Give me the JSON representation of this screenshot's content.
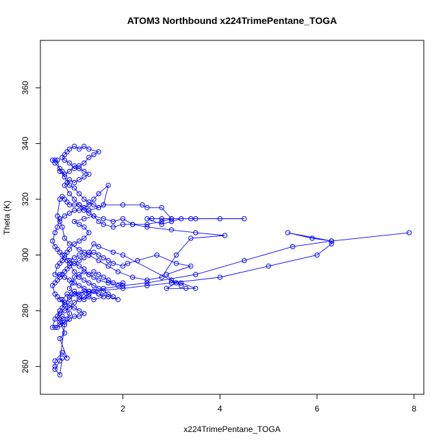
{
  "chart_data": {
    "type": "scatter",
    "title": "ATOM3 Northbound x224TrimePentane_TOGA",
    "xlabel": "x224TrimePentane_TOGA",
    "ylabel": "Theta (K)",
    "xlim": [
      0.3,
      8.2
    ],
    "ylim": [
      250,
      377
    ],
    "x_ticks": [
      2,
      4,
      6,
      8
    ],
    "y_ticks": [
      260,
      280,
      300,
      320,
      340,
      360
    ],
    "grid": false,
    "legend": "none",
    "point_style": "open-circle",
    "connect_points": true,
    "series": [
      {
        "color": "#0000ff",
        "points": [
          [
            0.6,
            260
          ],
          [
            0.6,
            262
          ],
          [
            0.75,
            265
          ],
          [
            0.85,
            263
          ],
          [
            0.7,
            270
          ],
          [
            0.8,
            272
          ],
          [
            0.7,
            276
          ],
          [
            0.75,
            278
          ],
          [
            0.85,
            277
          ],
          [
            0.9,
            279
          ],
          [
            0.8,
            282
          ],
          [
            0.75,
            284
          ],
          [
            0.85,
            286
          ],
          [
            0.9,
            285
          ],
          [
            0.95,
            286
          ],
          [
            1.0,
            287
          ],
          [
            1.1,
            286
          ],
          [
            1.2,
            287
          ],
          [
            1.3,
            286
          ],
          [
            1.4,
            287
          ],
          [
            1.5,
            286
          ],
          [
            1.6,
            285
          ],
          [
            1.4,
            284
          ],
          [
            1.3,
            285
          ],
          [
            1.2,
            284
          ],
          [
            1.1,
            285
          ],
          [
            1.0,
            286
          ],
          [
            0.9,
            288
          ],
          [
            0.95,
            290
          ],
          [
            1.0,
            292
          ],
          [
            1.1,
            293
          ],
          [
            1.2,
            294
          ],
          [
            1.3,
            293
          ],
          [
            1.4,
            294
          ],
          [
            1.5,
            293
          ],
          [
            1.6,
            292
          ],
          [
            1.7,
            291
          ],
          [
            1.8,
            290
          ],
          [
            2.0,
            290
          ],
          [
            1.9,
            289
          ],
          [
            1.7,
            290
          ],
          [
            1.5,
            291
          ],
          [
            1.4,
            292
          ],
          [
            1.3,
            293
          ],
          [
            1.2,
            295
          ],
          [
            1.1,
            296
          ],
          [
            1.0,
            297
          ],
          [
            0.9,
            298
          ],
          [
            1.0,
            299
          ],
          [
            1.1,
            300
          ],
          [
            1.2,
            301
          ],
          [
            1.3,
            300
          ],
          [
            1.4,
            301
          ],
          [
            1.5,
            300
          ],
          [
            1.6,
            299
          ],
          [
            1.7,
            298
          ],
          [
            1.8,
            297
          ],
          [
            2.0,
            296
          ],
          [
            2.1,
            297
          ],
          [
            2.3,
            298
          ],
          [
            2.7,
            300
          ],
          [
            3.1,
            297
          ],
          [
            3.4,
            296
          ],
          [
            2.9,
            293
          ],
          [
            3.0,
            291
          ],
          [
            3.2,
            290
          ],
          [
            3.5,
            288
          ],
          [
            3.3,
            288
          ],
          [
            2.9,
            288
          ],
          [
            3.1,
            290
          ],
          [
            3.2,
            289
          ],
          [
            2.0,
            300
          ],
          [
            1.8,
            301
          ],
          [
            1.5,
            303
          ],
          [
            1.4,
            304
          ],
          [
            1.3,
            301
          ],
          [
            1.2,
            299
          ],
          [
            1.1,
            298
          ],
          [
            1.0,
            297
          ],
          [
            0.9,
            296
          ],
          [
            0.85,
            295
          ],
          [
            0.8,
            294
          ],
          [
            0.7,
            293
          ],
          [
            0.6,
            293
          ],
          [
            0.65,
            296
          ],
          [
            0.7,
            297
          ],
          [
            0.75,
            298
          ],
          [
            0.8,
            300
          ],
          [
            0.85,
            301
          ],
          [
            0.9,
            302
          ],
          [
            1.0,
            304
          ],
          [
            1.1,
            305
          ],
          [
            1.2,
            306
          ],
          [
            1.3,
            308
          ],
          [
            1.2,
            310
          ],
          [
            1.1,
            311
          ],
          [
            1.0,
            312
          ],
          [
            1.2,
            313
          ],
          [
            1.4,
            314
          ],
          [
            1.6,
            313
          ],
          [
            1.8,
            312
          ],
          [
            2.0,
            313
          ],
          [
            2.2,
            311
          ],
          [
            2.5,
            311
          ],
          [
            2.8,
            312
          ],
          [
            3.0,
            313
          ],
          [
            3.4,
            313
          ],
          [
            4.5,
            313
          ],
          [
            4.0,
            313
          ],
          [
            3.5,
            313
          ],
          [
            3.2,
            313
          ],
          [
            3.0,
            312
          ],
          [
            2.8,
            311
          ],
          [
            2.5,
            313
          ],
          [
            2.6,
            313
          ],
          [
            2.8,
            313
          ],
          [
            3.0,
            313
          ],
          [
            2.8,
            317
          ],
          [
            2.5,
            317
          ],
          [
            2.4,
            318
          ],
          [
            2.0,
            318
          ],
          [
            1.6,
            318
          ],
          [
            1.5,
            317
          ],
          [
            1.3,
            316
          ],
          [
            1.2,
            317
          ],
          [
            1.1,
            318
          ],
          [
            1.0,
            318
          ],
          [
            0.9,
            318
          ],
          [
            0.85,
            319
          ],
          [
            0.8,
            320
          ],
          [
            0.75,
            321
          ],
          [
            0.7,
            320
          ],
          [
            0.65,
            314
          ],
          [
            0.7,
            312
          ],
          [
            0.75,
            310
          ],
          [
            0.8,
            306
          ],
          [
            0.9,
            304
          ],
          [
            1.1,
            302
          ],
          [
            1.3,
            300
          ],
          [
            1.5,
            298
          ],
          [
            1.7,
            296
          ],
          [
            1.9,
            294
          ],
          [
            2.2,
            292
          ],
          [
            2.5,
            291
          ],
          [
            2.8,
            292
          ],
          [
            3.1,
            300
          ],
          [
            3.4,
            306
          ],
          [
            4.1,
            307
          ],
          [
            3.5,
            308
          ],
          [
            3.0,
            309
          ],
          [
            2.5,
            310
          ],
          [
            2.2,
            311
          ],
          [
            2.0,
            311
          ],
          [
            1.8,
            310
          ],
          [
            1.6,
            311
          ],
          [
            1.5,
            312
          ],
          [
            1.4,
            314
          ],
          [
            1.3,
            315
          ],
          [
            1.2,
            316
          ],
          [
            1.1,
            318
          ],
          [
            1.0,
            320
          ],
          [
            0.9,
            322
          ],
          [
            0.8,
            325
          ],
          [
            0.85,
            326
          ],
          [
            0.9,
            327
          ],
          [
            1.0,
            326
          ],
          [
            1.1,
            327
          ],
          [
            1.2,
            328
          ],
          [
            1.3,
            329
          ],
          [
            1.2,
            330
          ],
          [
            1.1,
            331
          ],
          [
            1.0,
            331
          ],
          [
            0.9,
            333
          ],
          [
            0.8,
            334
          ],
          [
            0.75,
            335
          ],
          [
            0.8,
            336
          ],
          [
            0.85,
            337
          ],
          [
            0.9,
            338
          ],
          [
            1.0,
            339
          ],
          [
            1.1,
            338
          ],
          [
            1.2,
            339
          ],
          [
            1.3,
            338
          ],
          [
            1.5,
            337
          ],
          [
            1.4,
            336
          ],
          [
            1.3,
            335
          ],
          [
            1.2,
            333
          ],
          [
            1.1,
            332
          ],
          [
            1.0,
            332
          ],
          [
            0.9,
            330
          ],
          [
            0.8,
            329
          ],
          [
            0.7,
            330
          ],
          [
            0.65,
            334
          ],
          [
            0.6,
            334
          ],
          [
            0.55,
            334
          ],
          [
            0.6,
            333
          ],
          [
            0.7,
            331
          ],
          [
            0.75,
            330
          ],
          [
            0.8,
            328
          ],
          [
            0.9,
            325
          ],
          [
            1.0,
            324
          ],
          [
            1.1,
            322
          ],
          [
            1.2,
            320
          ],
          [
            1.3,
            319
          ],
          [
            1.4,
            318
          ],
          [
            1.5,
            317
          ],
          [
            1.6,
            318
          ],
          [
            1.7,
            325
          ],
          [
            1.5,
            322
          ],
          [
            1.4,
            320
          ],
          [
            1.3,
            318
          ],
          [
            1.2,
            317
          ],
          [
            1.1,
            316
          ],
          [
            1.0,
            316
          ],
          [
            0.9,
            315
          ],
          [
            0.8,
            314
          ],
          [
            0.7,
            313
          ],
          [
            0.65,
            310
          ],
          [
            0.6,
            308
          ],
          [
            0.55,
            305
          ],
          [
            0.6,
            303
          ],
          [
            0.65,
            302
          ],
          [
            0.7,
            301
          ],
          [
            0.75,
            300
          ],
          [
            0.8,
            299
          ],
          [
            0.85,
            298
          ],
          [
            0.9,
            297
          ],
          [
            1.0,
            294
          ],
          [
            1.1,
            292
          ],
          [
            1.2,
            291
          ],
          [
            1.3,
            290
          ],
          [
            1.4,
            289
          ],
          [
            1.5,
            288
          ],
          [
            1.6,
            287
          ],
          [
            1.7,
            286
          ],
          [
            1.8,
            285
          ],
          [
            1.9,
            284
          ],
          [
            1.7,
            285
          ],
          [
            1.5,
            286
          ],
          [
            1.3,
            287
          ],
          [
            1.2,
            288
          ],
          [
            1.1,
            289
          ],
          [
            1.0,
            290
          ],
          [
            0.9,
            291
          ],
          [
            0.8,
            292
          ],
          [
            0.75,
            293
          ],
          [
            0.7,
            292
          ],
          [
            0.65,
            291
          ],
          [
            0.6,
            290
          ],
          [
            0.55,
            289
          ],
          [
            0.6,
            286
          ],
          [
            0.65,
            285
          ],
          [
            0.7,
            284
          ],
          [
            0.8,
            283
          ],
          [
            0.9,
            282
          ],
          [
            1.0,
            281
          ],
          [
            1.1,
            280
          ],
          [
            1.2,
            279
          ],
          [
            1.1,
            278
          ],
          [
            1.0,
            278
          ],
          [
            0.9,
            277
          ],
          [
            0.8,
            276
          ],
          [
            0.7,
            275
          ],
          [
            0.65,
            274
          ],
          [
            0.6,
            274
          ],
          [
            0.55,
            274
          ],
          [
            0.6,
            277
          ],
          [
            0.7,
            279
          ],
          [
            0.8,
            280
          ],
          [
            0.9,
            281
          ],
          [
            1.0,
            283
          ],
          [
            1.1,
            284
          ],
          [
            1.2,
            285
          ],
          [
            1.3,
            286
          ],
          [
            1.4,
            287
          ],
          [
            2.0,
            288
          ],
          [
            2.5,
            289
          ],
          [
            3.0,
            290
          ],
          [
            4.0,
            292
          ],
          [
            5.0,
            296
          ],
          [
            6.0,
            300
          ],
          [
            6.3,
            304
          ],
          [
            6.3,
            305
          ],
          [
            5.9,
            306
          ],
          [
            5.4,
            308
          ],
          [
            6.3,
            305
          ],
          [
            7.9,
            308
          ],
          [
            6.3,
            305
          ],
          [
            5.5,
            303
          ],
          [
            4.5,
            298
          ],
          [
            3.5,
            293
          ],
          [
            2.5,
            290
          ],
          [
            2.0,
            289
          ],
          [
            1.6,
            288
          ],
          [
            1.3,
            287
          ],
          [
            1.0,
            286
          ],
          [
            0.9,
            284
          ],
          [
            0.8,
            283
          ],
          [
            0.75,
            281
          ],
          [
            0.7,
            280
          ],
          [
            0.65,
            278
          ],
          [
            0.7,
            277
          ],
          [
            0.75,
            276
          ],
          [
            0.8,
            275
          ],
          [
            0.7,
            262
          ],
          [
            0.6,
            259
          ],
          [
            0.7,
            257
          ],
          [
            0.75,
            263
          ]
        ]
      }
    ]
  }
}
